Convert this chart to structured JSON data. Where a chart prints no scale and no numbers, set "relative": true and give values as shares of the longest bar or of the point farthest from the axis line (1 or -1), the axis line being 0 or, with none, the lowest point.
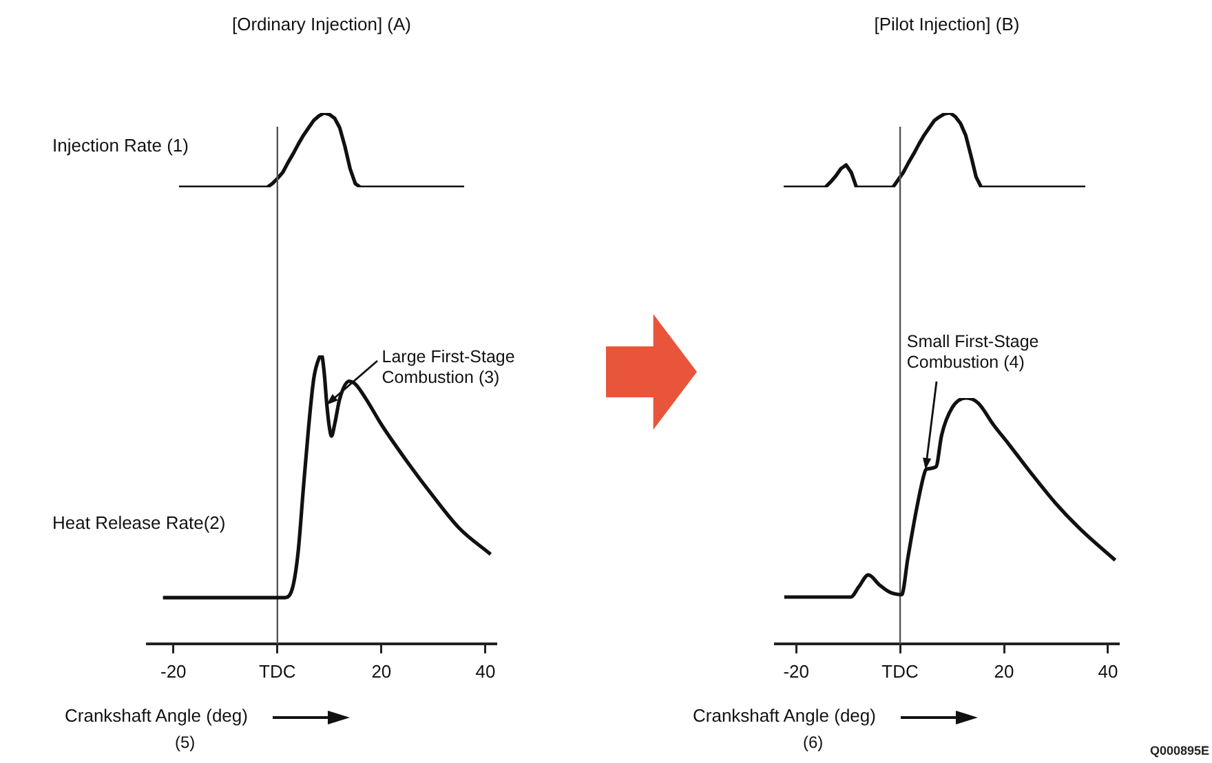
{
  "chart_data": [
    {
      "type": "line",
      "title": "[Ordinary Injection] (A)",
      "relative": true,
      "tick_labels": false,
      "categories": [
        null,
        null,
        null,
        null,
        null,
        null,
        null,
        null,
        null,
        null,
        null,
        null,
        null,
        null,
        null,
        null,
        null,
        null,
        null,
        null,
        null,
        null,
        null,
        null,
        null,
        null,
        null,
        null,
        null,
        null,
        null,
        null,
        null,
        null,
        null,
        null,
        null,
        null,
        null,
        null,
        null,
        null,
        null,
        null,
        null,
        null,
        null,
        null,
        null,
        null,
        null,
        null,
        null,
        null,
        null,
        null
      ],
      "series": [
        {
          "name": "Injection Rate (1)",
          "color": "#111111",
          "values": [
            0,
            0,
            0,
            0,
            0,
            0,
            0,
            0,
            0,
            0,
            0,
            0,
            0,
            0,
            0,
            0,
            0,
            0,
            0.05,
            0.12,
            0.2,
            0.33,
            0.45,
            0.58,
            0.7,
            0.8,
            0.9,
            0.96,
            1,
            0.98,
            0.93,
            0.8,
            0.55,
            0.25,
            0.05,
            0,
            0,
            0,
            0,
            0,
            0,
            0,
            0,
            0,
            0,
            0,
            0,
            0,
            0,
            0,
            0,
            0,
            0,
            0,
            0,
            0
          ]
        }
      ]
    },
    {
      "type": "line",
      "xlabel": "Crankshaft Angle (deg)",
      "relative": true,
      "xlim": [
        -25,
        42
      ],
      "xticks": [
        -20,
        {
          "value": 0,
          "label": "TDC"
        },
        20,
        40
      ],
      "ref_lines": [
        {
          "axis": "x",
          "value": 0,
          "color": "#555555"
        }
      ],
      "series": [
        {
          "name": "Heat Release Rate(2)",
          "color": "#111111",
          "x": [
            -22,
            1.5,
            3,
            4,
            5,
            6,
            7,
            8,
            8.5,
            9,
            9.5,
            10,
            10.4,
            11,
            12,
            13.8,
            15,
            17,
            20,
            25,
            30,
            35,
            41
          ],
          "values": [
            0.16,
            0.16,
            0.2,
            0.32,
            0.54,
            0.75,
            0.92,
            0.99,
            1,
            0.94,
            0.83,
            0.75,
            0.72,
            0.76,
            0.85,
            0.91,
            0.9,
            0.85,
            0.76,
            0.63,
            0.51,
            0.4,
            0.31
          ]
        }
      ],
      "annotations": [
        {
          "text": "Large First-Stage Combustion (3)",
          "x": 9.5,
          "y": 0.83
        },
        "(5)"
      ]
    },
    {
      "type": "line",
      "title": "[Pilot Injection] (B)",
      "relative": true,
      "tick_labels": false,
      "categories": [
        null,
        null,
        null,
        null,
        null,
        null,
        null,
        null,
        null,
        null,
        null,
        null,
        null,
        null,
        null,
        null,
        null,
        null,
        null,
        null,
        null,
        null,
        null,
        null,
        null,
        null,
        null,
        null,
        null,
        null,
        null,
        null,
        null,
        null,
        null,
        null,
        null,
        null,
        null,
        null,
        null,
        null,
        null,
        null,
        null,
        null,
        null,
        null,
        null,
        null,
        null,
        null,
        null,
        null,
        null,
        null,
        null,
        null,
        null
      ],
      "series": [
        {
          "color": "#111111",
          "values": [
            0,
            0,
            0,
            0,
            0,
            0,
            0,
            0,
            0,
            0.07,
            0.15,
            0.25,
            0.3,
            0.2,
            0,
            0,
            0,
            0,
            0,
            0,
            0,
            0,
            0.1,
            0.2,
            0.33,
            0.45,
            0.58,
            0.7,
            0.8,
            0.9,
            0.95,
            0.99,
            1,
            0.95,
            0.86,
            0.7,
            0.43,
            0.14,
            0,
            0,
            0,
            0,
            0,
            0,
            0,
            0,
            0,
            0,
            0,
            0,
            0,
            0,
            0,
            0,
            0,
            0,
            0,
            0,
            0
          ]
        }
      ]
    },
    {
      "type": "line",
      "xlabel": "Crankshaft Angle (deg)",
      "relative": true,
      "xlim": [
        -24,
        42
      ],
      "xticks": [
        -20,
        {
          "value": 0,
          "label": "TDC"
        },
        20,
        40
      ],
      "ref_lines": [
        {
          "axis": "x",
          "value": 0,
          "color": "#555555"
        }
      ],
      "series": [
        {
          "color": "#111111",
          "x": [
            -22.3,
            -9.5,
            -8,
            -6.1,
            -4,
            -2,
            0.3,
            1.5,
            3,
            4.5,
            5,
            6.9,
            8,
            10,
            12.7,
            15,
            18,
            21,
            25,
            30,
            35,
            41.4
          ],
          "values": [
            0.19,
            0.19,
            0.23,
            0.28,
            0.24,
            0.21,
            0.2,
            0.35,
            0.53,
            0.68,
            0.71,
            0.72,
            0.85,
            0.96,
            1,
            0.98,
            0.89,
            0.81,
            0.7,
            0.57,
            0.46,
            0.34
          ]
        }
      ],
      "annotations": [
        {
          "text": "Small First-Stage Combustion (4)",
          "x": 5,
          "y": 0.71
        },
        "(6)",
        "Q000895E"
      ]
    }
  ]
}
